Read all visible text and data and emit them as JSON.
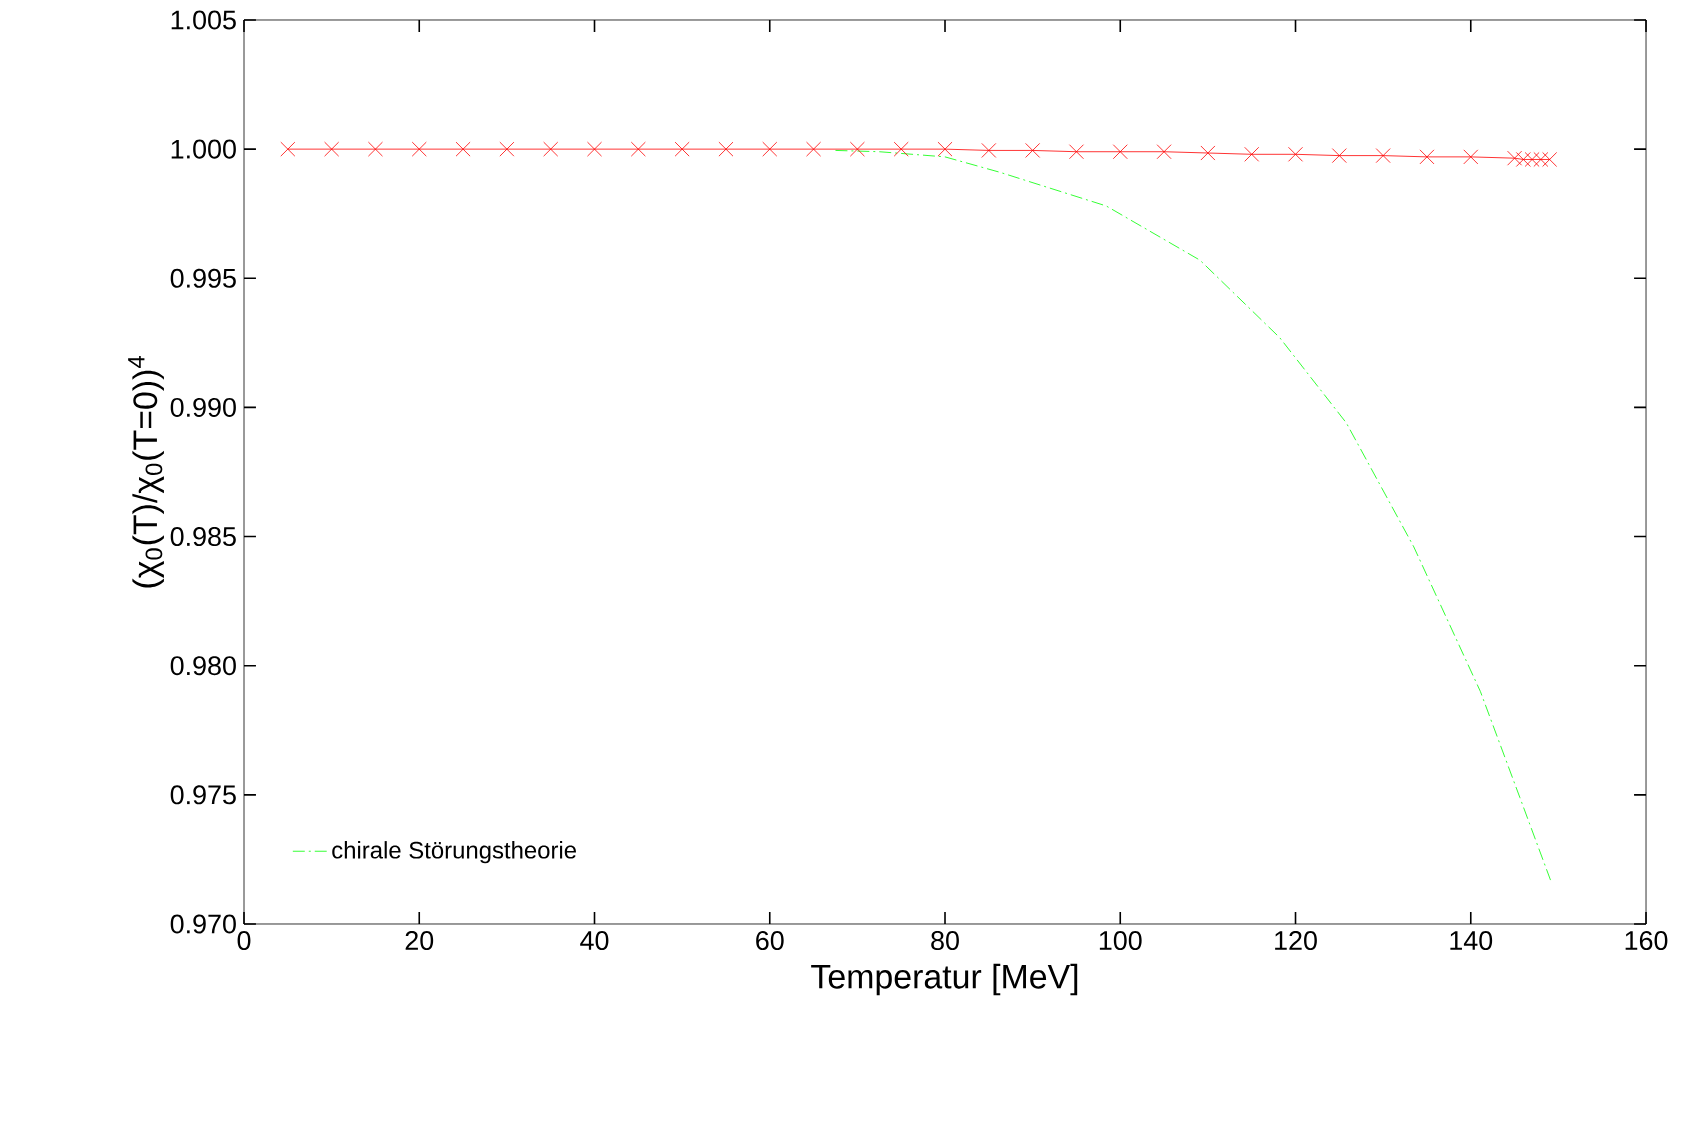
{
  "chart_data": {
    "type": "line",
    "xlabel": "Temperatur [MeV]",
    "ylabel": "(χ$_{0}$(T)/χ$_{0}$(T=0))$^{4}$",
    "xlim": [
      0,
      160
    ],
    "xticks": [
      0,
      20,
      40,
      60,
      80,
      100,
      120,
      140,
      160
    ],
    "ylim": [
      0.97,
      1.005
    ],
    "yticks": [
      {
        "value": 0.97,
        "label": "0.970"
      },
      {
        "value": 0.975,
        "label": "0.975"
      },
      {
        "value": 0.98,
        "label": "0.980"
      },
      {
        "value": 0.985,
        "label": "0.985"
      },
      {
        "value": 0.99,
        "label": "0.990"
      },
      {
        "value": 0.995,
        "label": "0.995"
      },
      {
        "value": 1.0,
        "label": "1.000"
      },
      {
        "value": 1.005,
        "label": "1.005"
      }
    ],
    "grid": false,
    "legend": "bottom left",
    "series": [
      {
        "color": "#ff0000",
        "marker": "cross",
        "line_style": "solid",
        "x": [
          5,
          10,
          15,
          20,
          25,
          30,
          35,
          40,
          45,
          50,
          55,
          60,
          65,
          70,
          75,
          80,
          85,
          90,
          95,
          100,
          105,
          110,
          115,
          120,
          125,
          130,
          135,
          140,
          145,
          146,
          147,
          148,
          149
        ],
        "values": [
          1.0,
          1.0,
          1.0,
          1.0,
          1.0,
          1.0,
          1.0,
          1.0,
          1.0,
          1.0,
          1.0,
          1.0,
          1.0,
          1.0,
          1.0,
          1.0,
          0.99995,
          0.99995,
          0.9999,
          0.9999,
          0.9999,
          0.99985,
          0.9998,
          0.9998,
          0.99975,
          0.99975,
          0.9997,
          0.9997,
          0.99965,
          0.9996,
          0.9996,
          0.9996,
          0.9996
        ]
      },
      {
        "name": "chirale Störungstheorie",
        "color": "#00ff00",
        "marker": "none",
        "line_style": "dashdot",
        "x": [
          67.5,
          72.5,
          80,
          86.3,
          98.4,
          109.1,
          118.2,
          125.8,
          133.5,
          141.1,
          145.6,
          149.1
        ],
        "values": [
          0.99995,
          0.9999,
          0.9997,
          0.9991,
          0.9978,
          0.9957,
          0.9927,
          0.9894,
          0.9846,
          0.979,
          0.9749,
          0.9717
        ]
      }
    ]
  }
}
